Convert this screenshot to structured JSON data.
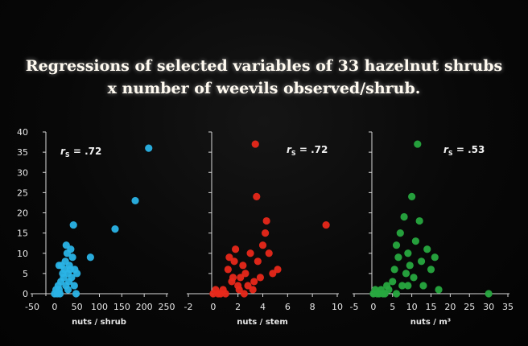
{
  "title": {
    "line1": "Regressions of selected variables of 33 hazelnut shrubs",
    "line2": "x  number of weevils observed/shrub."
  },
  "chart_data": [
    {
      "type": "scatter",
      "panel": "shrub",
      "xlabel": "nuts / shrub",
      "ylabel": "",
      "rs_symbol": "r",
      "rs_sub": "S",
      "rs_value": " = .72",
      "color": "#2ab3e6",
      "xlim": [
        -50,
        250
      ],
      "ylim": [
        0,
        40
      ],
      "xticks": [
        -50,
        0,
        50,
        100,
        150,
        200,
        250
      ],
      "yticks": [
        0,
        5,
        10,
        15,
        20,
        25,
        30,
        35,
        40
      ],
      "points": [
        [
          0,
          0
        ],
        [
          3,
          1
        ],
        [
          6,
          0
        ],
        [
          8,
          2
        ],
        [
          10,
          1
        ],
        [
          12,
          0
        ],
        [
          14,
          3
        ],
        [
          15,
          7
        ],
        [
          18,
          5
        ],
        [
          20,
          4
        ],
        [
          22,
          6
        ],
        [
          24,
          8
        ],
        [
          25,
          2
        ],
        [
          26,
          12
        ],
        [
          28,
          10
        ],
        [
          30,
          5
        ],
        [
          32,
          3
        ],
        [
          33,
          7
        ],
        [
          35,
          6
        ],
        [
          36,
          11
        ],
        [
          38,
          4
        ],
        [
          40,
          9
        ],
        [
          42,
          17
        ],
        [
          44,
          2
        ],
        [
          45,
          6
        ],
        [
          48,
          0
        ],
        [
          50,
          5
        ],
        [
          10,
          7
        ],
        [
          30,
          1
        ],
        [
          80,
          9
        ],
        [
          135,
          16
        ],
        [
          180,
          23
        ],
        [
          210,
          36
        ]
      ]
    },
    {
      "type": "scatter",
      "panel": "stem",
      "xlabel": "nuts / stem",
      "ylabel": "",
      "rs_symbol": "r",
      "rs_sub": "S",
      "rs_value": " = .72",
      "color": "#e8281a",
      "xlim": [
        -2,
        10
      ],
      "ylim": [
        0,
        40
      ],
      "xticks": [
        -2,
        0,
        2,
        4,
        6,
        8,
        10
      ],
      "yticks": [
        0,
        5,
        10,
        15,
        20,
        25,
        30,
        35,
        40
      ],
      "points": [
        [
          0,
          0
        ],
        [
          0.2,
          1
        ],
        [
          0.4,
          0
        ],
        [
          0.6,
          0
        ],
        [
          0.8,
          1
        ],
        [
          1,
          0
        ],
        [
          1.2,
          6
        ],
        [
          1.3,
          9
        ],
        [
          1.5,
          3
        ],
        [
          1.7,
          8
        ],
        [
          1.8,
          11
        ],
        [
          2,
          2
        ],
        [
          2.2,
          4
        ],
        [
          2.4,
          7
        ],
        [
          2.5,
          0
        ],
        [
          2.6,
          5
        ],
        [
          2.8,
          2
        ],
        [
          3,
          10
        ],
        [
          3.2,
          1
        ],
        [
          3.3,
          3
        ],
        [
          3.4,
          37
        ],
        [
          3.5,
          24
        ],
        [
          3.6,
          8
        ],
        [
          3.8,
          4
        ],
        [
          4,
          12
        ],
        [
          4.2,
          15
        ],
        [
          4.3,
          18
        ],
        [
          4.5,
          10
        ],
        [
          4.8,
          5
        ],
        [
          5.2,
          6
        ],
        [
          2.1,
          1
        ],
        [
          1.6,
          4
        ],
        [
          9.1,
          17
        ]
      ]
    },
    {
      "type": "scatter",
      "panel": "m3",
      "xlabel": "nuts / m³",
      "ylabel": "",
      "rs_symbol": "r",
      "rs_sub": "S",
      "rs_value": " = .53",
      "color": "#27a83f",
      "xlim": [
        -5,
        35
      ],
      "ylim": [
        0,
        40
      ],
      "xticks": [
        -5,
        0,
        5,
        10,
        15,
        20,
        25,
        30,
        35
      ],
      "yticks": [
        0,
        5,
        10,
        15,
        20,
        25,
        30,
        35,
        40
      ],
      "points": [
        [
          0,
          0
        ],
        [
          0.5,
          1
        ],
        [
          1,
          0
        ],
        [
          1.5,
          0
        ],
        [
          2,
          1
        ],
        [
          2.5,
          0
        ],
        [
          3,
          0
        ],
        [
          4,
          1
        ],
        [
          5,
          3
        ],
        [
          5.5,
          6
        ],
        [
          6,
          12
        ],
        [
          6.5,
          9
        ],
        [
          7,
          15
        ],
        [
          7.5,
          2
        ],
        [
          8,
          19
        ],
        [
          8.5,
          5
        ],
        [
          9,
          10
        ],
        [
          9.5,
          7
        ],
        [
          10,
          24
        ],
        [
          10.5,
          4
        ],
        [
          11,
          13
        ],
        [
          11.5,
          37
        ],
        [
          12,
          18
        ],
        [
          12.5,
          8
        ],
        [
          13,
          2
        ],
        [
          14,
          11
        ],
        [
          15,
          6
        ],
        [
          16,
          9
        ],
        [
          17,
          1
        ],
        [
          6,
          0
        ],
        [
          3.5,
          2
        ],
        [
          9,
          2
        ],
        [
          30,
          0
        ]
      ]
    }
  ]
}
